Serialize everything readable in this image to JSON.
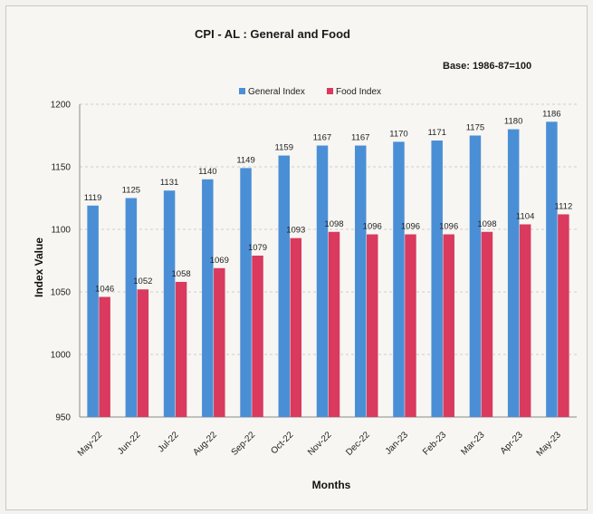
{
  "chart_data": {
    "type": "bar",
    "title": "CPI - AL : General and Food",
    "note": "Base: 1986-87=100",
    "xlabel": "Months",
    "ylabel": "Index Value",
    "ylim": [
      950,
      1200
    ],
    "yticks": [
      950,
      1000,
      1050,
      1100,
      1150,
      1200
    ],
    "grid": true,
    "legend_position": "top-center",
    "categories": [
      "May-22",
      "Jun-22",
      "Jul-22",
      "Aug-22",
      "Sep-22",
      "Oct-22",
      "Nov-22",
      "Dec-22",
      "Jan-23",
      "Feb-23",
      "Mar-23",
      "Apr-23",
      "May-23"
    ],
    "series": [
      {
        "name": "General Index",
        "color": "#4a8fd6",
        "values": [
          1119,
          1125,
          1131,
          1140,
          1149,
          1159,
          1167,
          1167,
          1170,
          1171,
          1175,
          1180,
          1186
        ]
      },
      {
        "name": "Food Index",
        "color": "#d93a5e",
        "values": [
          1046,
          1052,
          1058,
          1069,
          1079,
          1093,
          1098,
          1096,
          1096,
          1096,
          1098,
          1104,
          1112
        ]
      }
    ]
  }
}
